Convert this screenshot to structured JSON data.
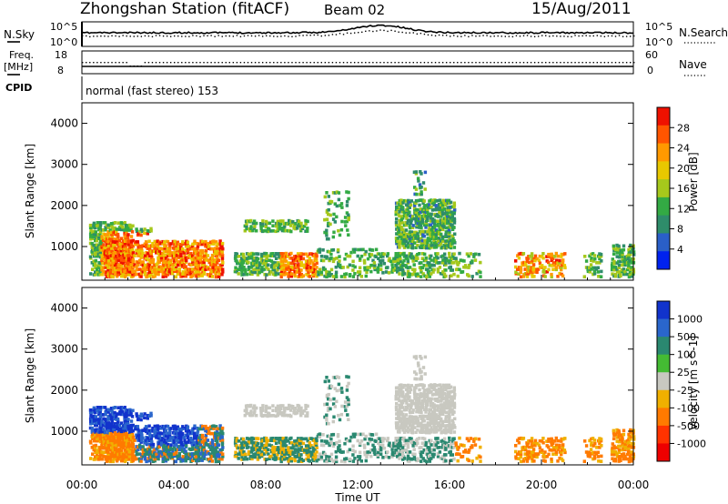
{
  "header": {
    "station": "Zhongshan Station (fitACF)",
    "beam": "Beam 02",
    "date": "15/Aug/2011"
  },
  "noise_panel": {
    "left_label": "N.Sky",
    "right_label": "N.Search",
    "left_ticks": [
      "10^5",
      "10^0"
    ],
    "right_ticks": [
      "10^5",
      "10^0"
    ]
  },
  "freq_panel": {
    "left_label": "Freq.",
    "left_unit": "[MHz]",
    "left_ticks": [
      "18",
      "8"
    ],
    "right_label": "Nave",
    "right_ticks": [
      "60",
      "0"
    ]
  },
  "cpid": {
    "label": "CPID",
    "value": "normal (fast stereo) 153"
  },
  "chart_data": [
    {
      "type": "heatmap",
      "title": "",
      "ylabel": "Slant Range [km]",
      "xlabel": "",
      "ylim": [
        180,
        4500
      ],
      "yticks": [
        "1000",
        "2000",
        "3000",
        "4000"
      ],
      "colorbar": {
        "label": "Power [dB]",
        "ticks": [
          "4",
          "8",
          "12",
          "16",
          "20",
          "24",
          "28"
        ],
        "range": [
          0,
          30
        ],
        "colors": [
          "#0022ee",
          "#2a5fc8",
          "#2e8c6a",
          "#33aa44",
          "#a6c81c",
          "#e8c800",
          "#ff9900",
          "#ff5500",
          "#ee1100"
        ]
      }
    },
    {
      "type": "heatmap",
      "title": "",
      "ylabel": "Slant Range [km]",
      "xlabel": "Time UT",
      "ylim": [
        180,
        4500
      ],
      "yticks": [
        "1000",
        "2000",
        "3000",
        "4000"
      ],
      "xticks": [
        "00:00",
        "04:00",
        "08:00",
        "12:00",
        "16:00",
        "20:00",
        "00:00"
      ],
      "colorbar": {
        "label": "Velocity [m s^-1]",
        "ticks": [
          "1000",
          "500",
          "100",
          "25",
          "-25",
          "-100",
          "-500",
          "-1000"
        ],
        "colors": [
          "#1133cc",
          "#2a66cc",
          "#2a8870",
          "#44bb33",
          "#c8c8c0",
          "#f0b000",
          "#ff7a00",
          "#ff3300",
          "#ee0000"
        ]
      }
    }
  ]
}
